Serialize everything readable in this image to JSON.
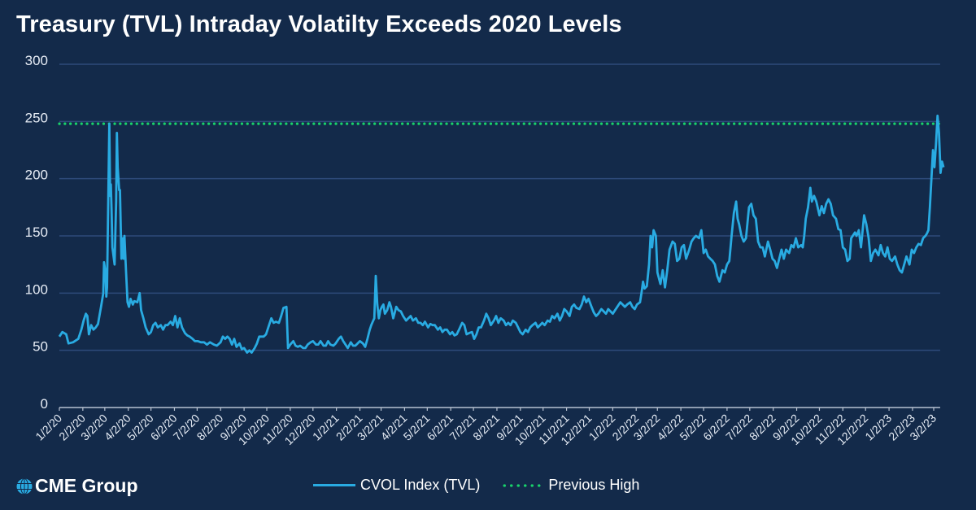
{
  "title": "Treasury (TVL) Intraday Volatilty Exceeds 2020 Levels",
  "logo": {
    "text": "CME Group",
    "icon": "globe-icon"
  },
  "legend": [
    {
      "label": "CVOL Index (TVL)",
      "style": "solid",
      "color": "#29abe2"
    },
    {
      "label": "Previous High",
      "style": "dotted",
      "color": "#19d36b"
    }
  ],
  "colors": {
    "background": "#132a4a",
    "grid": "#2e4a7a",
    "series": "#29abe2",
    "previous_high": "#19d36b",
    "text": "#ffffff"
  },
  "chart_data": {
    "type": "line",
    "title": "Treasury (TVL) Intraday Volatilty Exceeds 2020 Levels",
    "xlabel": "",
    "ylabel": "",
    "ylim": [
      0,
      300
    ],
    "yticks": [
      "0",
      "50",
      "100",
      "150",
      "200",
      "250",
      "300"
    ],
    "ytick_values": [
      0,
      50,
      100,
      150,
      200,
      250,
      300
    ],
    "grid": true,
    "legend_position": "bottom",
    "x_start_date": "1/2/20",
    "x_end_day": 1170,
    "xtick_labels": [
      "1/2/20",
      "2/2/20",
      "3/2/20",
      "4/2/20",
      "5/2/20",
      "6/2/20",
      "7/2/20",
      "8/2/20",
      "9/2/20",
      "10/2/20",
      "11/2/20",
      "12/2/20",
      "1/2/21",
      "2/2/21",
      "3/2/21",
      "4/2/21",
      "5/2/21",
      "6/2/21",
      "7/2/21",
      "8/2/21",
      "9/2/21",
      "10/2/21",
      "11/2/21",
      "12/2/21",
      "1/2/22",
      "2/2/22",
      "3/2/22",
      "4/2/22",
      "5/2/22",
      "6/2/22",
      "7/2/22",
      "8/2/22",
      "9/2/22",
      "10/2/22",
      "11/2/22",
      "12/2/22",
      "1/2/23",
      "2/2/23",
      "3/2/23"
    ],
    "xtick_days": [
      0,
      31,
      60,
      91,
      121,
      152,
      182,
      213,
      244,
      274,
      305,
      335,
      366,
      397,
      425,
      456,
      486,
      517,
      547,
      578,
      609,
      639,
      670,
      700,
      731,
      762,
      790,
      821,
      851,
      882,
      912,
      943,
      974,
      1004,
      1035,
      1065,
      1096,
      1127,
      1155
    ],
    "reference_lines": [
      {
        "name": "Previous High",
        "value": 248
      }
    ],
    "series": [
      {
        "name": "CVOL Index (TVL)",
        "days": [
          0,
          4,
          9,
          12,
          18,
          25,
          29,
          32,
          35,
          37,
          39,
          42,
          45,
          48,
          51,
          55,
          58,
          59,
          61,
          62,
          63,
          66,
          67,
          68,
          69,
          70,
          73,
          75,
          76,
          77,
          79,
          80,
          82,
          84,
          85,
          86,
          88,
          90,
          92,
          94,
          97,
          99,
          103,
          106,
          108,
          111,
          114,
          118,
          121,
          124,
          127,
          130,
          134,
          137,
          140,
          143,
          147,
          150,
          153,
          156,
          159,
          162,
          166,
          169,
          172,
          176,
          179,
          183,
          187,
          191,
          195,
          199,
          204,
          208,
          213,
          216,
          219,
          222,
          225,
          228,
          231,
          234,
          238,
          241,
          244,
          248,
          251,
          254,
          258,
          261,
          264,
          267,
          270,
          273,
          277,
          280,
          283,
          286,
          290,
          293,
          296,
          300,
          302,
          305,
          309,
          312,
          315,
          318,
          322,
          325,
          328,
          332,
          335,
          339,
          342,
          345,
          349,
          352,
          355,
          358,
          362,
          365,
          369,
          372,
          375,
          378,
          381,
          385,
          388,
          391,
          394,
          397,
          401,
          404,
          407,
          410,
          412,
          414,
          416,
          418,
          420,
          422,
          424,
          426,
          428,
          430,
          433,
          436,
          438,
          441,
          445,
          448,
          451,
          454,
          458,
          461,
          464,
          467,
          471,
          474,
          477,
          480,
          483,
          487,
          490,
          493,
          496,
          500,
          503,
          506,
          509,
          512,
          516,
          519,
          522,
          525,
          528,
          532,
          535,
          538,
          541,
          545,
          548,
          551,
          554,
          557,
          561,
          564,
          567,
          570,
          574,
          577,
          580,
          583,
          587,
          590,
          593,
          596,
          599,
          603,
          606,
          609,
          612,
          616,
          619,
          622,
          625,
          629,
          632,
          635,
          638,
          641,
          645,
          648,
          651,
          654,
          658,
          661,
          664,
          667,
          670,
          674,
          677,
          680,
          683,
          687,
          690,
          693,
          696,
          699,
          703,
          706,
          709,
          712,
          716,
          719,
          722,
          725,
          728,
          731,
          734,
          737,
          741,
          744,
          747,
          750,
          754,
          757,
          760,
          763,
          767,
          769,
          771,
          773,
          776,
          779,
          781,
          783,
          785,
          788,
          790,
          794,
          797,
          800,
          803,
          806,
          810,
          813,
          816,
          819,
          822,
          825,
          828,
          832,
          835,
          838,
          841,
          845,
          848,
          851,
          854,
          857,
          860,
          863,
          866,
          869,
          872,
          876,
          879,
          882,
          885,
          888,
          891,
          894,
          896,
          898,
          901,
          904,
          907,
          911,
          914,
          917,
          920,
          923,
          926,
          929,
          932,
          936,
          939,
          942,
          945,
          948,
          951,
          954,
          957,
          960,
          964,
          967,
          970,
          973,
          976,
          980,
          982,
          984,
          986,
          989,
          992,
          994,
          997,
          1000,
          1004,
          1007,
          1010,
          1013,
          1016,
          1019,
          1022,
          1026,
          1029,
          1032,
          1035,
          1038,
          1041,
          1044,
          1046,
          1048,
          1051,
          1053,
          1056,
          1059,
          1063,
          1066,
          1069,
          1072,
          1075,
          1078,
          1082,
          1085,
          1088,
          1091,
          1094,
          1097,
          1100,
          1104,
          1107,
          1110,
          1113,
          1116,
          1119,
          1123,
          1126,
          1129,
          1132,
          1135,
          1138,
          1141,
          1144,
          1146,
          1148,
          1150,
          1152,
          1154,
          1156,
          1158,
          1160,
          1162,
          1164,
          1166,
          1168
        ],
        "values": [
          62,
          66,
          64,
          56,
          57,
          60,
          68,
          76,
          82,
          80,
          64,
          72,
          68,
          70,
          73,
          88,
          100,
          127,
          118,
          97,
          105,
          248,
          185,
          195,
          172,
          140,
          125,
          180,
          240,
          210,
          190,
          190,
          130,
          148,
          130,
          150,
          120,
          92,
          88,
          95,
          90,
          93,
          92,
          100,
          85,
          78,
          70,
          64,
          66,
          72,
          74,
          70,
          72,
          68,
          72,
          72,
          75,
          72,
          80,
          70,
          78,
          70,
          65,
          63,
          62,
          60,
          58,
          58,
          57,
          57,
          55,
          57,
          55,
          54,
          57,
          62,
          60,
          62,
          60,
          55,
          60,
          53,
          56,
          51,
          52,
          48,
          50,
          48,
          52,
          56,
          62,
          62,
          62,
          64,
          72,
          78,
          74,
          75,
          74,
          80,
          87,
          88,
          52,
          55,
          58,
          54,
          53,
          54,
          52,
          52,
          55,
          57,
          58,
          55,
          55,
          58,
          54,
          54,
          58,
          55,
          54,
          56,
          60,
          62,
          58,
          55,
          52,
          57,
          54,
          54,
          56,
          58,
          56,
          53,
          60,
          68,
          72,
          75,
          78,
          115,
          90,
          78,
          85,
          88,
          90,
          82,
          85,
          92,
          88,
          78,
          88,
          85,
          84,
          80,
          76,
          78,
          80,
          76,
          78,
          74,
          74,
          72,
          75,
          70,
          73,
          72,
          72,
          68,
          70,
          66,
          68,
          68,
          64,
          66,
          63,
          64,
          68,
          74,
          72,
          64,
          65,
          66,
          60,
          64,
          70,
          70,
          76,
          82,
          78,
          72,
          76,
          80,
          74,
          78,
          76,
          72,
          74,
          72,
          76,
          74,
          70,
          66,
          64,
          68,
          66,
          70,
          72,
          74,
          70,
          72,
          74,
          72,
          76,
          75,
          80,
          78,
          82,
          76,
          80,
          86,
          84,
          80,
          88,
          90,
          87,
          86,
          90,
          97,
          92,
          95,
          88,
          83,
          80,
          82,
          86,
          84,
          82,
          86,
          84,
          82,
          85,
          88,
          92,
          90,
          88,
          90,
          92,
          88,
          86,
          90,
          92,
          100,
          110,
          104,
          106,
          125,
          150,
          140,
          155,
          150,
          118,
          108,
          120,
          105,
          120,
          138,
          145,
          143,
          128,
          130,
          140,
          142,
          130,
          138,
          145,
          148,
          150,
          148,
          155,
          135,
          138,
          132,
          130,
          128,
          125,
          115,
          110,
          120,
          118,
          125,
          128,
          150,
          170,
          180,
          165,
          160,
          150,
          145,
          148,
          175,
          178,
          168,
          165,
          145,
          140,
          140,
          132,
          145,
          138,
          130,
          128,
          122,
          130,
          138,
          130,
          138,
          135,
          142,
          140,
          148,
          140,
          142,
          140,
          150,
          165,
          175,
          192,
          180,
          185,
          180,
          168,
          176,
          170,
          178,
          182,
          178,
          168,
          165,
          156,
          155,
          140,
          138,
          128,
          130,
          148,
          150,
          153,
          150,
          155,
          140,
          168,
          160,
          148,
          128,
          135,
          138,
          133,
          142,
          135,
          132,
          140,
          130,
          128,
          132,
          125,
          120,
          118,
          125,
          132,
          125,
          138,
          135,
          140,
          143,
          142,
          148,
          150,
          152,
          155,
          175,
          200,
          225,
          210,
          230,
          255,
          240,
          205,
          215,
          210
        ]
      }
    ]
  }
}
